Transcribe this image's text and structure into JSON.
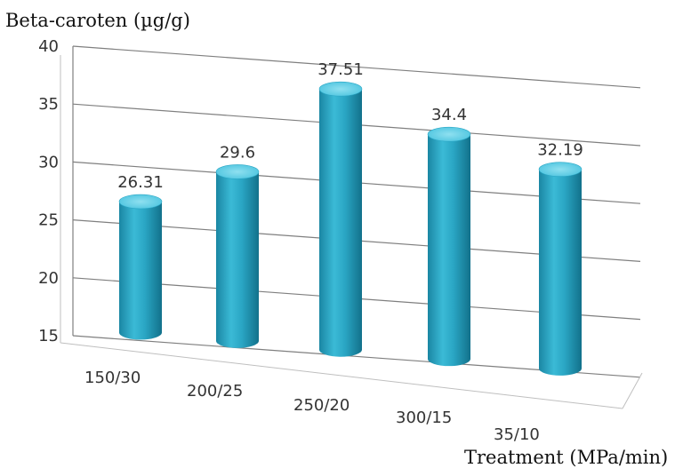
{
  "chart_data": {
    "type": "bar",
    "style": "3d-cylinder",
    "title": "",
    "ylabel": "Beta-caroten (µg/g)",
    "xlabel": "Treatment (MPa/min)",
    "ylim": [
      15,
      40
    ],
    "yticks": [
      15,
      20,
      25,
      30,
      35,
      40
    ],
    "grid": true,
    "legend": "none",
    "categories": [
      "150/30",
      "200/25",
      "250/20",
      "300/15",
      "35/10"
    ],
    "values": [
      26.31,
      29.6,
      37.51,
      34.4,
      32.19
    ],
    "value_labels": [
      "26.31",
      "29.6",
      "37.51",
      "34.4",
      "32.19"
    ],
    "colors": {
      "bar": "#2aa6c4",
      "bar_dark": "#1a86a3",
      "bar_top": "#5fcde6",
      "grid": "#7f7f7f"
    }
  }
}
